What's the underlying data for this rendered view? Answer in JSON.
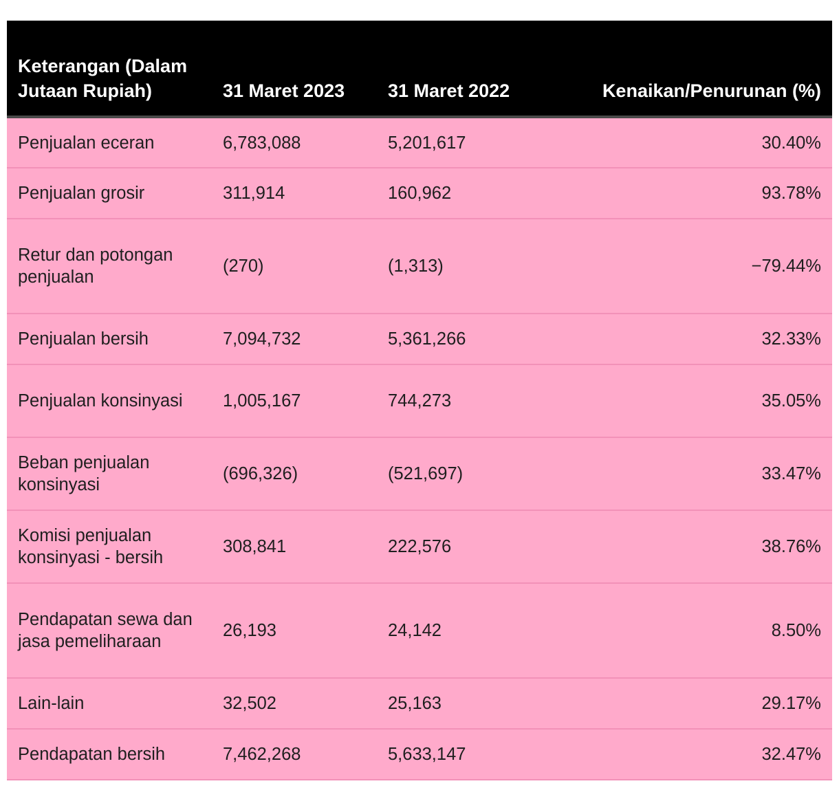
{
  "table": {
    "headers": [
      "Keterangan (Dalam Jutaan Rupiah)",
      "31 Maret 2023",
      "31 Maret 2022",
      "Kenaikan/Penurunan (%)"
    ],
    "rows": [
      [
        "Penjualan eceran",
        "6,783,088",
        "5,201,617",
        "30.40%"
      ],
      [
        "Penjualan grosir",
        "311,914",
        "160,962",
        "93.78%"
      ],
      [
        "Retur dan potongan penjualan",
        "(270)",
        "(1,313)",
        "−79.44%"
      ],
      [
        "Penjualan bersih",
        "7,094,732",
        "5,361,266",
        "32.33%"
      ],
      [
        "Penjualan konsinyasi",
        "1,005,167",
        "744,273",
        "35.05%"
      ],
      [
        "Beban penjualan konsinyasi",
        "(696,326)",
        "(521,697)",
        "33.47%"
      ],
      [
        "Komisi penjualan konsinyasi - bersih",
        "308,841",
        "222,576",
        "38.76%"
      ],
      [
        "Pendapatan sewa dan jasa pemeliharaan",
        "26,193",
        "24,142",
        "8.50%"
      ],
      [
        "Lain-lain",
        "32,502",
        "25,163",
        "29.17%"
      ],
      [
        "Pendapatan bersih",
        "7,462,268",
        "5,633,147",
        "32.47%"
      ]
    ]
  },
  "colors": {
    "header_bg": "#000000",
    "header_text": "#ffffff",
    "row_bg": "#ffaacb",
    "row_divider": "#f291b8"
  }
}
